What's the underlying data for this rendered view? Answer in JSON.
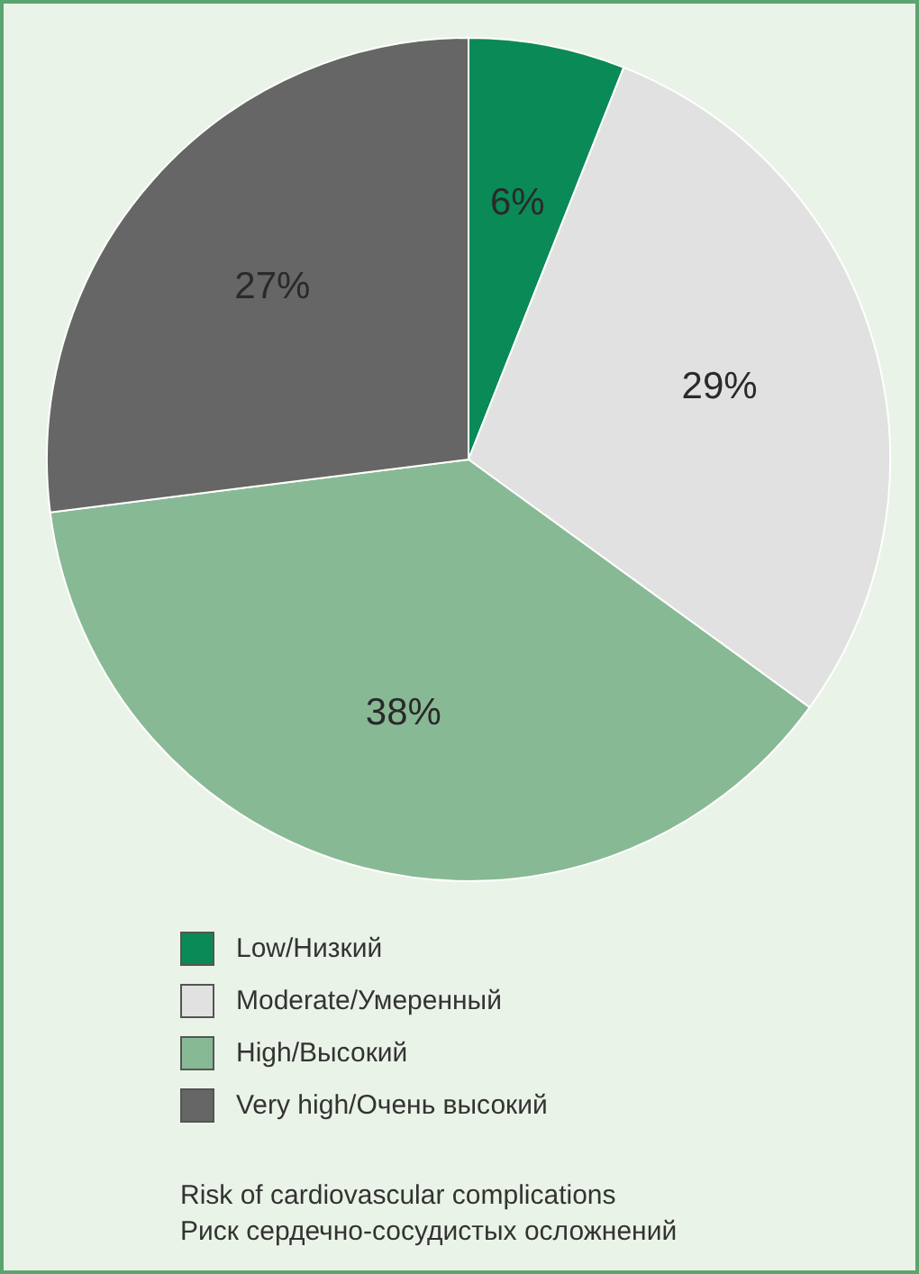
{
  "chart_data": {
    "type": "pie",
    "categories": [
      "Low/Низкий",
      "Moderate/Умеренный",
      "High/Высокий",
      "Very high/Очень высокий"
    ],
    "values": [
      6,
      29,
      38,
      27
    ],
    "colors": [
      "#0a8a57",
      "#e1e1e1",
      "#88b995",
      "#666666"
    ],
    "value_labels": [
      "6%",
      "29%",
      "38%",
      "27%"
    ],
    "legend": "bottom",
    "annotations": [
      "Risk of cardiovascular complications",
      "Риск сердечно-сосудистых осложнений"
    ]
  }
}
